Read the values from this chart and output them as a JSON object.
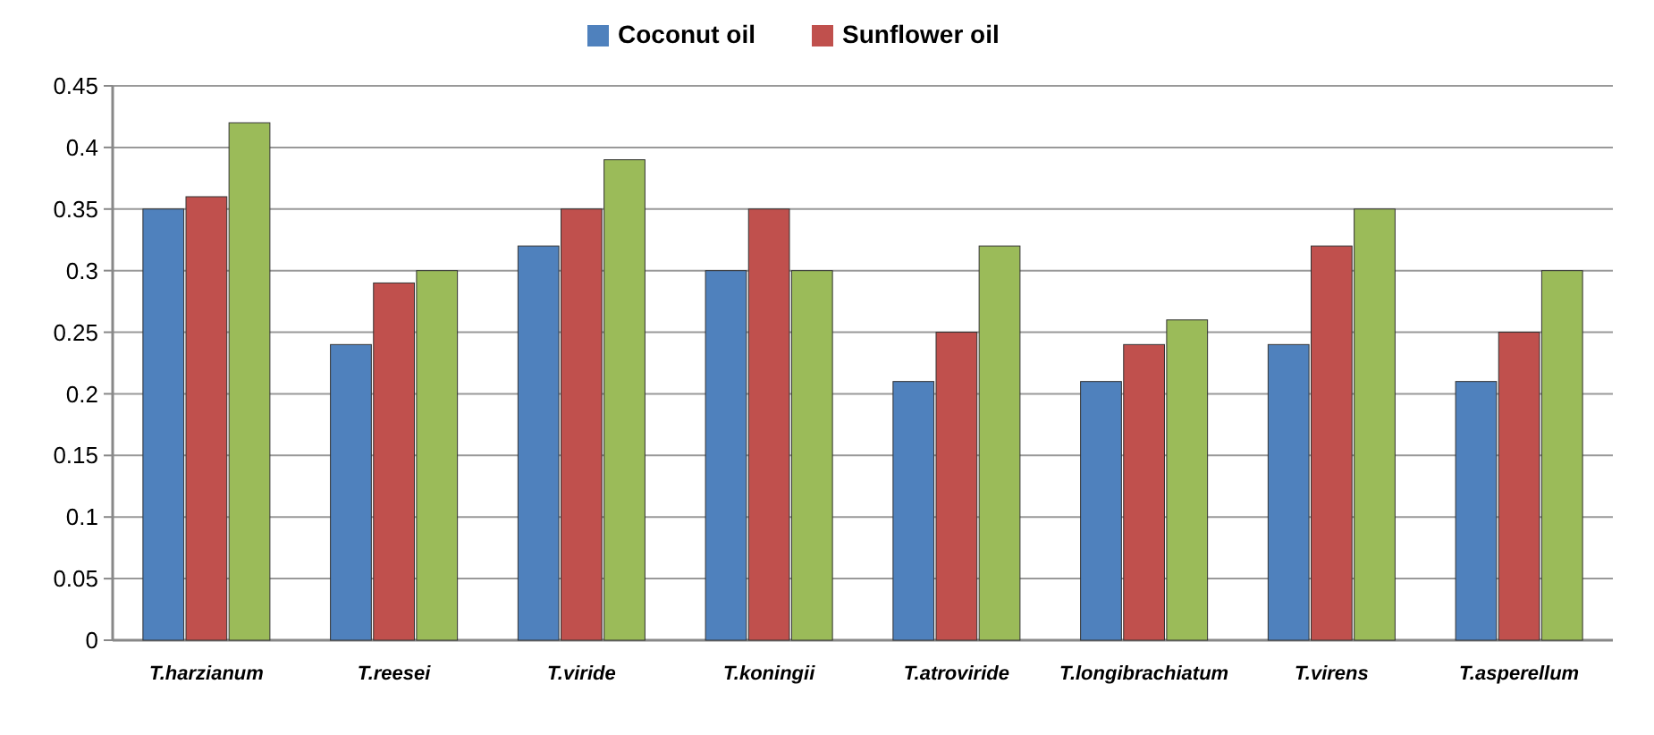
{
  "chart_data": {
    "type": "bar",
    "categories": [
      "T.harzianum",
      "T.reesei",
      "T.viride",
      "T.koningii",
      "T.atroviride",
      "T.longibrachiatum",
      "T.virens",
      "T.asperellum"
    ],
    "series": [
      {
        "name": "Coconut oil",
        "color": "#4f81bd",
        "values": [
          0.35,
          0.24,
          0.32,
          0.3,
          0.21,
          0.21,
          0.24,
          0.21
        ]
      },
      {
        "name": "Sunflower oil",
        "color": "#c0504d",
        "values": [
          0.36,
          0.29,
          0.35,
          0.35,
          0.25,
          0.24,
          0.32,
          0.25
        ]
      },
      {
        "color": "#9bbb59",
        "values": [
          0.42,
          0.3,
          0.39,
          0.3,
          0.32,
          0.26,
          0.35,
          0.3
        ]
      }
    ],
    "ylim": [
      0,
      0.45
    ],
    "yticks": [
      0,
      0.05,
      0.1,
      0.15,
      0.2,
      0.25,
      0.3,
      0.35,
      0.4,
      0.45
    ],
    "grid": "y",
    "legend": "top"
  }
}
